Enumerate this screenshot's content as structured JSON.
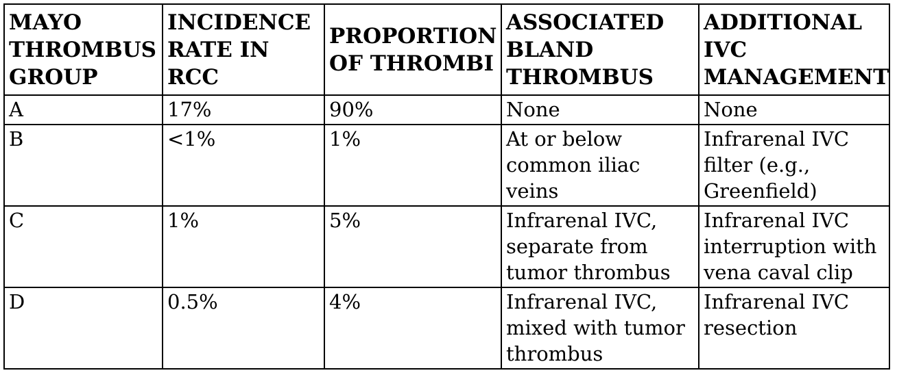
{
  "table": {
    "headers": [
      "MAYO THROMBUS GROUP",
      "INCIDENCE RATE IN RCC",
      "PROPORTION OF THROMBI",
      "ASSOCIATED BLAND THROMBUS",
      "ADDITIONAL IVC MANAGEMENT"
    ],
    "rows": [
      [
        "A",
        "17%",
        "90%",
        "None",
        "None"
      ],
      [
        "B",
        "<1%",
        "1%",
        "At or below common iliac veins",
        "Infrarenal IVC filter (e.g., Greenfield)"
      ],
      [
        "C",
        "1%",
        "5%",
        "Infrarenal IVC, separate from tumor thrombus",
        "Infrarenal IVC interruption with vena caval clip"
      ],
      [
        "D",
        "0.5%",
        "4%",
        "Infrarenal IVC, mixed with tumor thrombus",
        "Infrarenal IVC resection"
      ]
    ]
  }
}
